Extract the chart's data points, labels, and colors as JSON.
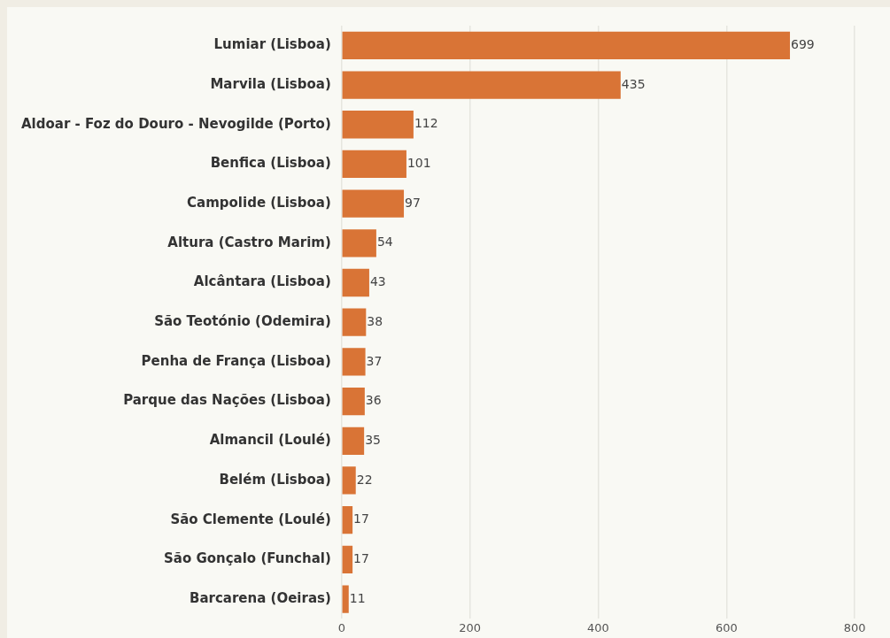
{
  "chart_data": {
    "type": "bar",
    "orientation": "horizontal",
    "categories": [
      "Lumiar (Lisboa)",
      "Marvila (Lisboa)",
      "Aldoar - Foz do Douro - Nevogilde (Porto)",
      "Benfica (Lisboa)",
      "Campolide (Lisboa)",
      "Altura (Castro Marim)",
      "Alcântara (Lisboa)",
      "São Teotónio (Odemira)",
      "Penha de França (Lisboa)",
      "Parque das Nações (Lisboa)",
      "Almancil (Loulé)",
      "Belém (Lisboa)",
      "São Clemente (Loulé)",
      "São Gonçalo (Funchal)",
      "Barcarena (Oeiras)"
    ],
    "values": [
      699,
      435,
      112,
      101,
      97,
      54,
      43,
      38,
      37,
      36,
      35,
      22,
      17,
      17,
      11
    ],
    "color": "#d97436",
    "xlim": [
      0,
      855
    ],
    "xticks": [
      0,
      200,
      400,
      600,
      800
    ],
    "grid": "x",
    "data_labels": true
  }
}
